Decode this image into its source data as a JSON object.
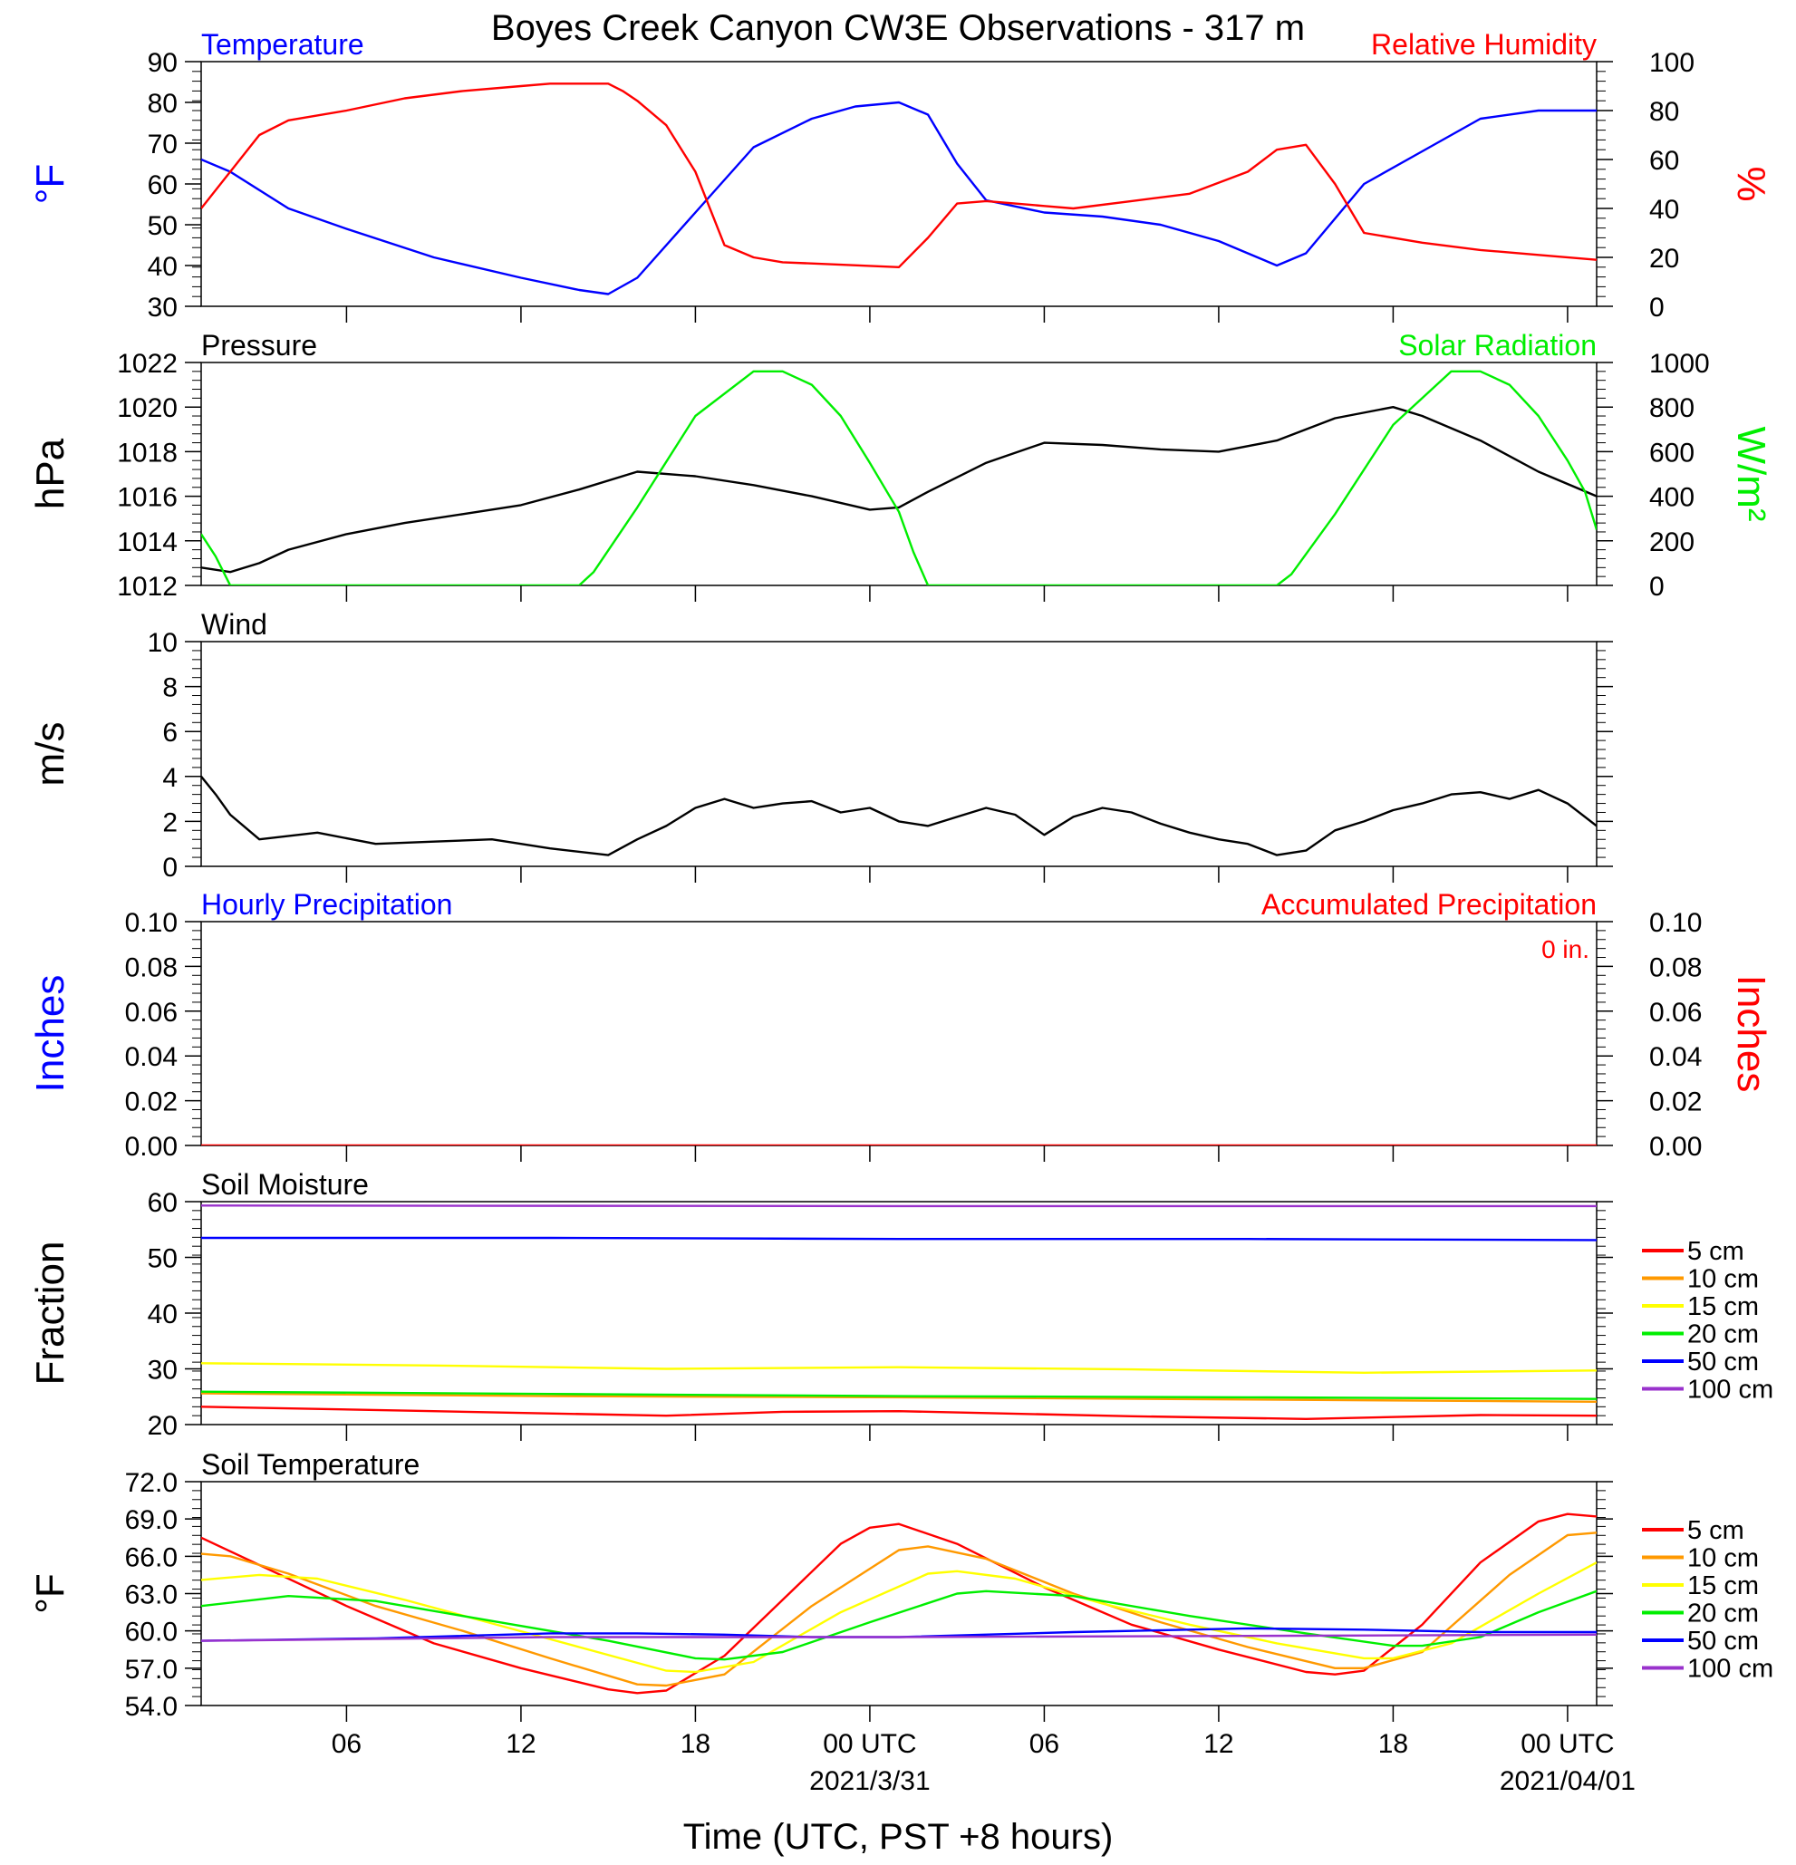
{
  "title": "Boyes Creek Canyon CW3E Observations - 317 m",
  "xaxis": {
    "title": "Time (UTC, PST +8 hours)",
    "range_hours": [
      0,
      48
    ],
    "ticks": [
      {
        "h": 5,
        "label": "06",
        "sub": ""
      },
      {
        "h": 11,
        "label": "12",
        "sub": ""
      },
      {
        "h": 17,
        "label": "18",
        "sub": ""
      },
      {
        "h": 23,
        "label": "00 UTC",
        "sub": "2021/3/31"
      },
      {
        "h": 29,
        "label": "06",
        "sub": ""
      },
      {
        "h": 35,
        "label": "12",
        "sub": ""
      },
      {
        "h": 41,
        "label": "18",
        "sub": ""
      },
      {
        "h": 47,
        "label": "00 UTC",
        "sub": "2021/04/01"
      }
    ]
  },
  "chart_data": [
    {
      "type": "line",
      "panel": "temperature-humidity",
      "title_left": "Temperature",
      "title_right": "Relative Humidity",
      "ylabel_left": "°F",
      "ylabel_right": "%",
      "ylim_left": [
        30,
        90
      ],
      "ylim_right": [
        0,
        100
      ],
      "yticks_left": [
        "30",
        "40",
        "50",
        "60",
        "70",
        "80",
        "90"
      ],
      "yticks_right": [
        "0",
        "20",
        "40",
        "60",
        "80",
        "100"
      ],
      "series": [
        {
          "axis": "left",
          "color": "#0000ff",
          "x": [
            0,
            1,
            3,
            5,
            8,
            11,
            13,
            14,
            15,
            17,
            19,
            21,
            22.5,
            24,
            25,
            26,
            27,
            29,
            31,
            33,
            35,
            36,
            37,
            38,
            40,
            42,
            44,
            46,
            48
          ],
          "y": [
            66,
            63,
            54,
            49,
            42,
            37,
            34,
            33,
            37,
            53,
            69,
            76,
            79,
            80,
            77,
            65,
            56,
            53,
            52,
            50,
            46,
            43,
            40,
            43,
            60,
            68,
            76,
            78,
            78
          ]
        },
        {
          "axis": "right",
          "color": "#ff0000",
          "x": [
            0,
            1,
            2,
            3,
            5,
            7,
            9,
            11,
            12,
            14,
            14.5,
            15,
            16,
            17,
            18,
            19,
            20,
            22,
            24,
            25,
            26,
            27,
            28,
            29,
            30,
            32,
            34,
            36,
            37,
            38,
            39,
            40,
            42,
            44,
            46,
            48
          ],
          "y": [
            40,
            55,
            70,
            76,
            80,
            85,
            88,
            90,
            91,
            91,
            88,
            84,
            74,
            55,
            25,
            20,
            18,
            17,
            16,
            28,
            42,
            43,
            42,
            41,
            40,
            43,
            46,
            55,
            64,
            66,
            50,
            30,
            26,
            23,
            21,
            19
          ]
        }
      ]
    },
    {
      "type": "line",
      "panel": "pressure-solar",
      "title_left": "Pressure",
      "title_right": "Solar Radiation",
      "ylabel_left": "hPa",
      "ylabel_right": "W/m²",
      "ylim_left": [
        1012,
        1022
      ],
      "ylim_right": [
        0,
        1000
      ],
      "yticks_left": [
        "1012",
        "1014",
        "1016",
        "1018",
        "1020",
        "1022"
      ],
      "yticks_right": [
        "0",
        "200",
        "400",
        "600",
        "800",
        "1000"
      ],
      "series": [
        {
          "axis": "left",
          "color": "#000000",
          "x": [
            0,
            1,
            2,
            3,
            5,
            7,
            9,
            11,
            13,
            15,
            17,
            19,
            21,
            23,
            24,
            25,
            27,
            29,
            31,
            33,
            35,
            37,
            39,
            41,
            42,
            44,
            46,
            48
          ],
          "y": [
            1012.8,
            1012.6,
            1013.0,
            1013.6,
            1014.3,
            1014.8,
            1015.2,
            1015.6,
            1016.3,
            1017.1,
            1016.9,
            1016.5,
            1016.0,
            1015.4,
            1015.5,
            1016.2,
            1017.5,
            1018.4,
            1018.3,
            1018.1,
            1018.0,
            1018.5,
            1019.5,
            1020.0,
            1019.6,
            1018.5,
            1017.1,
            1016.0
          ]
        },
        {
          "axis": "right",
          "color": "#00ee00",
          "x": [
            0,
            0.5,
            1,
            13,
            13.5,
            15,
            17,
            19,
            20,
            21,
            22,
            23,
            24,
            24.5,
            25,
            37,
            37.5,
            39,
            41,
            43,
            44,
            45,
            46,
            47,
            47.6,
            48
          ],
          "y": [
            230,
            130,
            0,
            0,
            60,
            350,
            760,
            960,
            960,
            900,
            760,
            550,
            330,
            150,
            0,
            0,
            50,
            320,
            720,
            960,
            960,
            900,
            760,
            560,
            420,
            250
          ]
        }
      ]
    },
    {
      "type": "line",
      "panel": "wind",
      "title_left": "Wind",
      "ylabel_left": "m/s",
      "ylim_left": [
        0,
        10
      ],
      "yticks_left": [
        "0",
        "2",
        "4",
        "6",
        "8",
        "10"
      ],
      "series": [
        {
          "axis": "left",
          "color": "#000000",
          "x": [
            0,
            0.5,
            1,
            2,
            4,
            6,
            8,
            10,
            12,
            14,
            15,
            16,
            17,
            18,
            19,
            20,
            21,
            22,
            23,
            24,
            25,
            26,
            27,
            28,
            29,
            30,
            31,
            32,
            33,
            34,
            35,
            36,
            37,
            38,
            39,
            40,
            41,
            42,
            43,
            44,
            45,
            46,
            47,
            48
          ],
          "y": [
            4.0,
            3.2,
            2.3,
            1.2,
            1.5,
            1.0,
            1.1,
            1.2,
            0.8,
            0.5,
            1.2,
            1.8,
            2.6,
            3.0,
            2.6,
            2.8,
            2.9,
            2.4,
            2.6,
            2.0,
            1.8,
            2.2,
            2.6,
            2.3,
            1.4,
            2.2,
            2.6,
            2.4,
            1.9,
            1.5,
            1.2,
            1.0,
            0.5,
            0.7,
            1.6,
            2.0,
            2.5,
            2.8,
            3.2,
            3.3,
            3.0,
            3.4,
            2.8,
            1.8
          ]
        }
      ]
    },
    {
      "type": "line",
      "panel": "precipitation",
      "title_left": "Hourly Precipitation",
      "title_right": "Accumulated Precipitation",
      "annotation": "0 in.",
      "ylabel_left": "Inches",
      "ylabel_right": "Inches",
      "ylim_left": [
        0,
        0.1
      ],
      "ylim_right": [
        0,
        0.1
      ],
      "yticks_left": [
        "0.00",
        "0.02",
        "0.04",
        "0.06",
        "0.08",
        "0.10"
      ],
      "yticks_right": [
        "0.00",
        "0.02",
        "0.04",
        "0.06",
        "0.08",
        "0.10"
      ],
      "series": [
        {
          "axis": "left",
          "color": "#ff0000",
          "x": [
            0,
            48
          ],
          "y": [
            0,
            0
          ]
        }
      ]
    },
    {
      "type": "line",
      "panel": "soil-moisture",
      "title_left": "Soil Moisture",
      "ylabel_left": "Fraction",
      "ylim_left": [
        20,
        60
      ],
      "yticks_left": [
        "20",
        "30",
        "40",
        "50",
        "60"
      ],
      "legend": [
        "5 cm",
        "10 cm",
        "15 cm",
        "20 cm",
        "50 cm",
        "100 cm"
      ],
      "series": [
        {
          "name": "5 cm",
          "axis": "left",
          "color": "#ff0000",
          "x": [
            0,
            8,
            16,
            20,
            24,
            32,
            38,
            44,
            48
          ],
          "y": [
            23.2,
            22.4,
            21.6,
            22.3,
            22.4,
            21.5,
            21.0,
            21.7,
            21.6
          ]
        },
        {
          "name": "10 cm",
          "axis": "left",
          "color": "#ff9900",
          "x": [
            0,
            12,
            24,
            36,
            48
          ],
          "y": [
            25.6,
            25.1,
            24.9,
            24.5,
            24.1
          ]
        },
        {
          "name": "15 cm",
          "axis": "left",
          "color": "#ffff00",
          "x": [
            0,
            8,
            16,
            24,
            32,
            40,
            48
          ],
          "y": [
            31.0,
            30.6,
            30.0,
            30.3,
            29.9,
            29.3,
            29.7
          ]
        },
        {
          "name": "20 cm",
          "axis": "left",
          "color": "#00ee00",
          "x": [
            0,
            12,
            24,
            36,
            48
          ],
          "y": [
            25.9,
            25.5,
            25.1,
            24.9,
            24.6
          ]
        },
        {
          "name": "50 cm",
          "axis": "left",
          "color": "#0000ff",
          "x": [
            0,
            12,
            24,
            36,
            48
          ],
          "y": [
            53.5,
            53.5,
            53.3,
            53.3,
            53.1
          ]
        },
        {
          "name": "100 cm",
          "axis": "left",
          "color": "#9932cc",
          "x": [
            0,
            24,
            48
          ],
          "y": [
            59.3,
            59.2,
            59.2
          ]
        }
      ]
    },
    {
      "type": "line",
      "panel": "soil-temperature",
      "title_left": "Soil Temperature",
      "ylabel_left": "°F",
      "ylim_left": [
        54,
        72
      ],
      "yticks_left": [
        "54.0",
        "57.0",
        "60.0",
        "63.0",
        "66.0",
        "69.0",
        "72.0"
      ],
      "legend": [
        "5 cm",
        "10 cm",
        "15 cm",
        "20 cm",
        "50 cm",
        "100 cm"
      ],
      "series": [
        {
          "name": "5 cm",
          "axis": "left",
          "color": "#ff0000",
          "x": [
            0,
            2,
            5,
            8,
            11,
            14,
            15,
            16,
            18,
            20,
            22,
            23,
            24,
            26,
            29,
            32,
            35,
            38,
            39,
            40,
            42,
            44,
            46,
            47,
            48
          ],
          "y": [
            67.5,
            65.3,
            62.0,
            59.0,
            57.0,
            55.3,
            55.0,
            55.2,
            58.0,
            62.5,
            67.0,
            68.3,
            68.6,
            67.0,
            63.5,
            60.5,
            58.5,
            56.7,
            56.5,
            56.8,
            60.5,
            65.5,
            68.8,
            69.4,
            69.2
          ]
        },
        {
          "name": "10 cm",
          "axis": "left",
          "color": "#ff9900",
          "x": [
            0,
            1,
            3,
            6,
            9,
            12,
            15,
            16,
            18,
            21,
            24,
            25,
            27,
            30,
            33,
            36,
            39,
            40,
            42,
            45,
            47,
            48
          ],
          "y": [
            66.2,
            66.0,
            64.6,
            62.0,
            60.0,
            57.8,
            55.7,
            55.6,
            56.5,
            62.0,
            66.5,
            66.8,
            65.8,
            63.0,
            60.7,
            58.7,
            57.0,
            57.0,
            58.3,
            64.5,
            67.7,
            67.9
          ]
        },
        {
          "name": "15 cm",
          "axis": "left",
          "color": "#ffff00",
          "x": [
            0,
            2,
            4,
            7,
            10,
            13,
            16,
            17,
            19,
            22,
            25,
            26,
            28,
            31,
            34,
            37,
            40,
            41,
            43,
            46,
            48
          ],
          "y": [
            64.1,
            64.5,
            64.2,
            62.5,
            60.6,
            58.7,
            56.8,
            56.7,
            57.5,
            61.5,
            64.6,
            64.8,
            64.2,
            62.2,
            60.5,
            59.0,
            57.8,
            57.8,
            59.0,
            63.0,
            65.5
          ]
        },
        {
          "name": "20 cm",
          "axis": "left",
          "color": "#00ee00",
          "x": [
            0,
            3,
            6,
            10,
            14,
            17,
            18,
            20,
            23,
            26,
            27,
            30,
            34,
            38,
            41,
            42,
            44,
            46,
            48
          ],
          "y": [
            62.0,
            62.8,
            62.4,
            60.8,
            59.2,
            57.8,
            57.7,
            58.3,
            60.7,
            63.0,
            63.2,
            62.8,
            61.2,
            59.8,
            58.8,
            58.8,
            59.5,
            61.5,
            63.2
          ]
        },
        {
          "name": "50 cm",
          "axis": "left",
          "color": "#0000ff",
          "x": [
            0,
            6,
            12,
            15,
            18,
            21,
            24,
            30,
            36,
            40,
            44,
            48
          ],
          "y": [
            59.2,
            59.4,
            59.8,
            59.8,
            59.7,
            59.5,
            59.5,
            59.9,
            60.2,
            60.1,
            59.9,
            59.9
          ]
        },
        {
          "name": "100 cm",
          "axis": "left",
          "color": "#9932cc",
          "x": [
            0,
            12,
            24,
            36,
            48
          ],
          "y": [
            59.2,
            59.5,
            59.5,
            59.6,
            59.7
          ]
        }
      ]
    }
  ]
}
